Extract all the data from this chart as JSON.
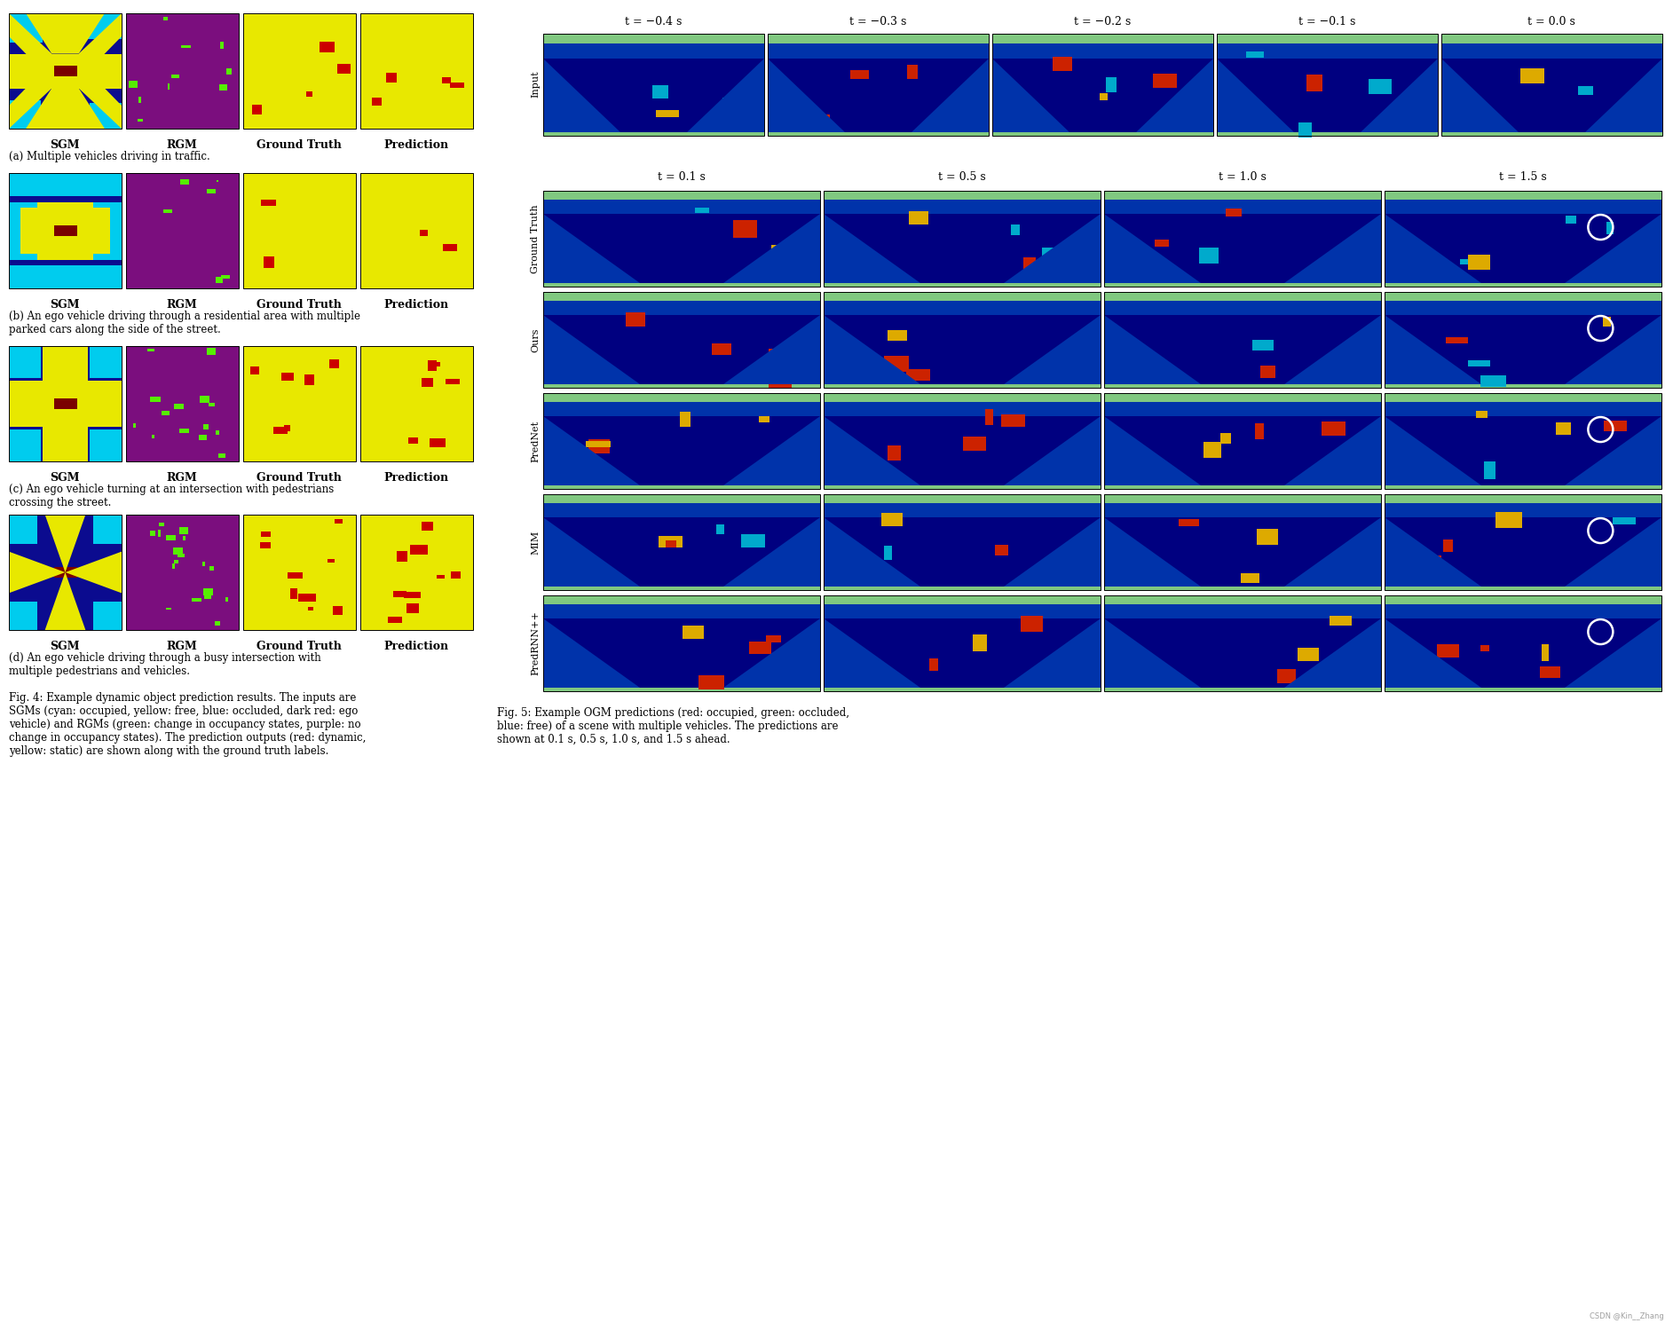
{
  "fig_width": 18.85,
  "fig_height": 15.0,
  "bg_color": "#ffffff",
  "left_panel": {
    "fig4_caption": "Fig. 4: Example dynamic object prediction results. The inputs are\nSGMs (cyan: occupied, yellow: free, blue: occluded, dark red: ego\nvehicle) and RGMs (green: change in occupancy states, purple: no\nchange in occupancy states). The prediction outputs (red: dynamic,\nyellow: static) are shown along with the ground truth labels.",
    "row_captions": [
      "(a) Multiple vehicles driving in traffic.",
      "(b) An ego vehicle driving through a residential area with multiple\nparked cars along the side of the street.",
      "(c) An ego vehicle turning at an intersection with pedestrians\ncrossing the street.",
      "(d) An ego vehicle driving through a busy intersection with\nmultiple pedestrians and vehicles."
    ],
    "col_labels": [
      "SGM",
      "RGM",
      "Ground Truth",
      "Prediction"
    ],
    "sgm_bg": "#0b0b8f",
    "sgm_free": "#e8e800",
    "sgm_occ": "#00ccee",
    "sgm_ego": "#7a0000",
    "rgm_bg": "#7b0e7e",
    "rgm_change": "#55ee00",
    "gt_bg": "#e8e800",
    "gt_dyn": "#cc0000",
    "pred_bg": "#e8e800",
    "pred_dyn": "#cc0000"
  },
  "right_panel": {
    "input_time_labels": [
      "t = −0.4 s",
      "t = −0.3 s",
      "t = −0.2 s",
      "t = −0.1 s",
      "t = 0.0 s"
    ],
    "pred_time_labels": [
      "t = 0.1 s",
      "t = 0.5 s",
      "t = 1.0 s",
      "t = 1.5 s"
    ],
    "row_labels": [
      "Input",
      "Ground Truth",
      "Ours",
      "PredNet",
      "MIM",
      "PredRNN++"
    ],
    "fig5_caption": "Fig. 5: Example OGM predictions (red: occupied, green: occluded,\nblue: free) of a scene with multiple vehicles. The predictions are\nshown at 0.1 s, 0.5 s, 1.0 s, and 1.5 s ahead.",
    "ogm_dark_blue": "#000080",
    "ogm_green_strip": "#80c880",
    "ogm_red": "#cc2200",
    "ogm_yellow": "#ddaa00",
    "ogm_cyan": "#00aacc",
    "ogm_mid_blue": "#0033aa"
  },
  "watermark": "CSDN @Kin__Zhang",
  "font_sizes": {
    "col_label": 9,
    "caption": 8.5,
    "fig_caption": 8.5,
    "time_label": 9,
    "row_label": 8,
    "watermark": 6
  }
}
